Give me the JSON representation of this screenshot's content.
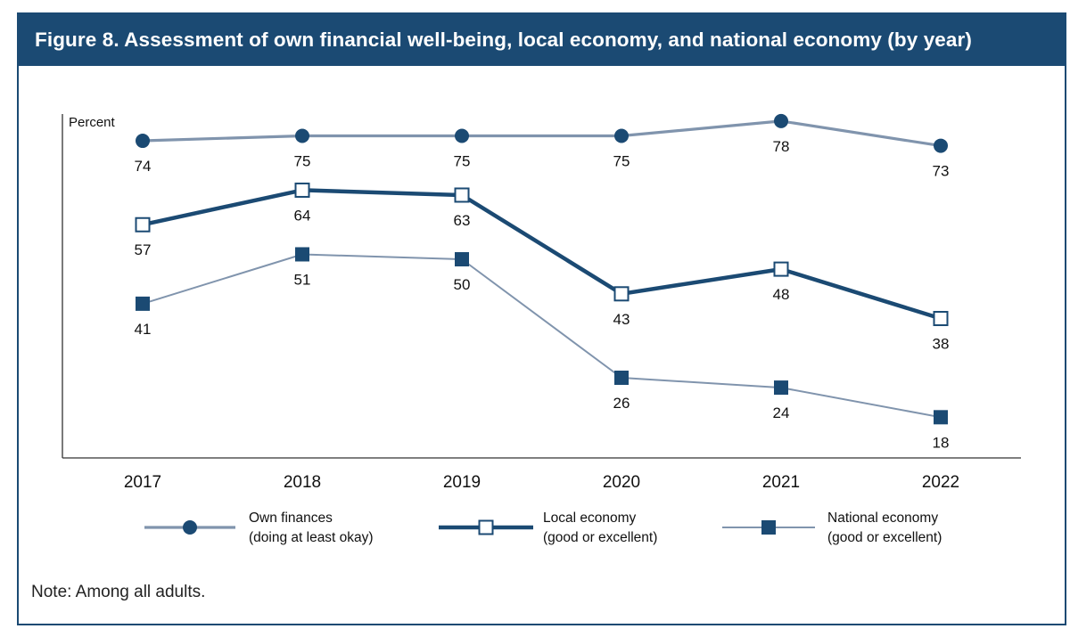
{
  "figure": {
    "title": "Figure 8. Assessment of own financial well-being, local economy, and national economy (by year)",
    "note": "Note: Among all adults."
  },
  "colors": {
    "navy": "#1b4a73",
    "light_line": "#8094ad",
    "white": "#ffffff"
  },
  "chart_data": {
    "type": "line",
    "title": "Figure 8. Assessment of own financial well-being, local economy, and national economy (by year)",
    "ylabel": "Percent",
    "xlabel": "",
    "categories": [
      "2017",
      "2018",
      "2019",
      "2020",
      "2021",
      "2022"
    ],
    "ylim": [
      0,
      100
    ],
    "grid": false,
    "legend_position": "bottom",
    "series": [
      {
        "name": "Own finances (doing at least okay)",
        "legend_lines": [
          "Own finances",
          "(doing at least okay)"
        ],
        "values": [
          74,
          75,
          75,
          75,
          78,
          73
        ],
        "labels": [
          "74",
          "75",
          "75",
          "75",
          "78",
          "73"
        ],
        "marker": "circle",
        "line_color": "#8094ad",
        "marker_color": "#1b4a73",
        "line_style": "thick"
      },
      {
        "name": "Local economy (good or excellent)",
        "legend_lines": [
          "Local economy",
          "(good or excellent)"
        ],
        "values": [
          57,
          64,
          63,
          43,
          48,
          38
        ],
        "labels": [
          "57",
          "64",
          "63",
          "43",
          "48",
          "38"
        ],
        "marker": "open-square",
        "line_color": "#1b4a73",
        "marker_color": "#1b4a73",
        "line_style": "thicker"
      },
      {
        "name": "National economy (good or excellent)",
        "legend_lines": [
          "National economy",
          "(good or excellent)"
        ],
        "values": [
          41,
          51,
          50,
          26,
          24,
          18
        ],
        "labels": [
          "41",
          "51",
          "50",
          "26",
          "24",
          "18"
        ],
        "marker": "filled-square",
        "line_color": "#8094ad",
        "marker_color": "#1b4a73",
        "line_style": "thin"
      }
    ]
  }
}
